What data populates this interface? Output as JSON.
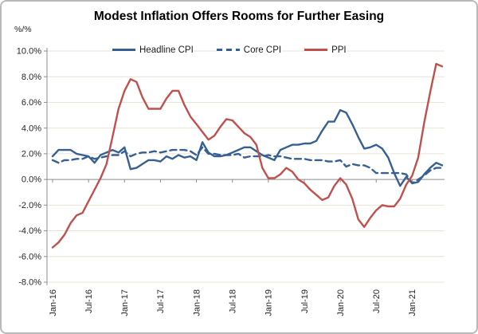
{
  "chart_data": {
    "type": "line",
    "title": "Modest Inflation Offers Rooms for Further Easing",
    "unit_label": "%/%",
    "x_interval": "monthly",
    "x_start": "Jan-16",
    "x_end": "Jun-21",
    "x_tick_labels": [
      "Jan-16",
      "Jul-16",
      "Jan-17",
      "Jul-17",
      "Jan-18",
      "Jul-18",
      "Jan-19",
      "Jul-19",
      "Jan-20",
      "Jul-20",
      "Jan-21"
    ],
    "x_tick_indices": [
      0,
      6,
      12,
      18,
      24,
      30,
      36,
      42,
      48,
      54,
      60
    ],
    "ylim": [
      -8,
      10
    ],
    "ytick_step": 2,
    "y_tick_labels": [
      "10.0%",
      "8.0%",
      "6.0%",
      "4.0%",
      "2.0%",
      "0.0%",
      "-2.0%",
      "-4.0%",
      "-6.0%",
      "-8.0%"
    ],
    "grid": true,
    "legend_position": "top-inside",
    "colors": {
      "cpi_blue": "#376092",
      "ppi_red": "#C0504D",
      "gridline": "#e9e4d5",
      "zero_axis": "#8c8c8c",
      "axis_text": "#262626"
    },
    "series": [
      {
        "name": "Headline CPI",
        "color": "#376092",
        "dash": "solid",
        "values": [
          1.8,
          2.3,
          2.3,
          2.3,
          2.0,
          1.9,
          1.8,
          1.3,
          1.9,
          2.1,
          2.3,
          2.1,
          2.5,
          0.8,
          0.9,
          1.2,
          1.5,
          1.5,
          1.4,
          1.8,
          1.6,
          1.9,
          1.7,
          1.8,
          1.5,
          2.9,
          2.1,
          1.8,
          1.8,
          1.9,
          2.1,
          2.3,
          2.5,
          2.5,
          2.2,
          1.9,
          1.7,
          1.5,
          2.3,
          2.5,
          2.7,
          2.7,
          2.8,
          2.8,
          3.0,
          3.8,
          4.5,
          4.5,
          5.4,
          5.2,
          4.3,
          3.3,
          2.4,
          2.5,
          2.7,
          2.4,
          1.7,
          0.5,
          -0.5,
          0.2,
          -0.3,
          -0.2,
          0.4,
          0.9,
          1.3,
          1.1
        ]
      },
      {
        "name": "Core CPI",
        "color": "#376092",
        "dash": "dashed",
        "values": [
          1.5,
          1.3,
          1.5,
          1.5,
          1.6,
          1.6,
          1.8,
          1.6,
          1.7,
          1.8,
          1.9,
          1.9,
          2.2,
          1.8,
          2.0,
          2.1,
          2.1,
          2.2,
          2.1,
          2.2,
          2.3,
          2.3,
          2.3,
          2.2,
          1.9,
          2.5,
          2.0,
          2.0,
          1.9,
          1.9,
          1.9,
          2.0,
          1.7,
          1.8,
          1.8,
          1.8,
          1.9,
          1.8,
          1.8,
          1.7,
          1.6,
          1.6,
          1.6,
          1.5,
          1.5,
          1.5,
          1.4,
          1.4,
          1.5,
          1.0,
          1.2,
          1.1,
          1.1,
          0.9,
          0.5,
          0.5,
          0.5,
          0.5,
          0.5,
          0.4,
          -0.3,
          0.0,
          0.3,
          0.7,
          0.9,
          0.9
        ]
      },
      {
        "name": "PPI",
        "color": "#C0504D",
        "dash": "solid",
        "values": [
          -5.3,
          -4.9,
          -4.3,
          -3.4,
          -2.8,
          -2.6,
          -1.7,
          -0.8,
          0.1,
          1.2,
          3.3,
          5.5,
          6.9,
          7.8,
          7.6,
          6.4,
          5.5,
          5.5,
          5.5,
          6.3,
          6.9,
          6.9,
          5.8,
          4.9,
          4.3,
          3.7,
          3.1,
          3.4,
          4.1,
          4.7,
          4.6,
          4.1,
          3.6,
          3.3,
          2.7,
          0.9,
          0.1,
          0.1,
          0.4,
          0.9,
          0.6,
          0.0,
          -0.3,
          -0.8,
          -1.2,
          -1.6,
          -1.4,
          -0.5,
          0.1,
          -0.4,
          -1.5,
          -3.1,
          -3.7,
          -3.0,
          -2.4,
          -2.0,
          -2.1,
          -2.1,
          -1.5,
          -0.4,
          0.3,
          1.7,
          4.4,
          6.8,
          9.0,
          8.8
        ]
      }
    ]
  }
}
